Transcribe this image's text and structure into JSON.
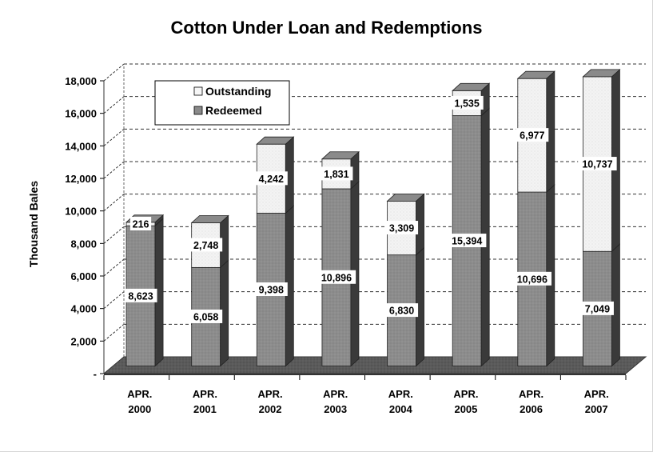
{
  "chart_data": {
    "type": "bar",
    "stacked": true,
    "three_d": true,
    "title": "Cotton Under Loan and Redemptions",
    "xlabel": "",
    "ylabel": "Thousand Bales",
    "categories": [
      [
        "APR.",
        "2000"
      ],
      [
        "APR.",
        "2001"
      ],
      [
        "APR.",
        "2002"
      ],
      [
        "APR.",
        "2003"
      ],
      [
        "APR.",
        "2004"
      ],
      [
        "APR.",
        "2005"
      ],
      [
        "APR.",
        "2006"
      ],
      [
        "APR.",
        "2007"
      ]
    ],
    "series": [
      {
        "name": "Redeemed",
        "values": [
          8623,
          6058,
          9398,
          10896,
          6830,
          15394,
          10696,
          7049
        ],
        "labels": [
          "8,623",
          "6,058",
          "9,398",
          "10,896",
          "6,830",
          "15,394",
          "10,696",
          "7,049"
        ],
        "color": "#8a8a8a"
      },
      {
        "name": "Outstanding",
        "values": [
          216,
          2748,
          4242,
          1831,
          3309,
          1535,
          6977,
          10737
        ],
        "labels": [
          "216",
          "2,748",
          "4,242",
          "1,831",
          "3,309",
          "1,535",
          "6,977",
          "10,737"
        ],
        "color": "#f0f0f0"
      }
    ],
    "ylim": [
      0,
      18000
    ],
    "yticks": [
      0,
      2000,
      4000,
      6000,
      8000,
      10000,
      12000,
      14000,
      16000,
      18000
    ],
    "ytick_labels": [
      "-",
      "2,000",
      "4,000",
      "6,000",
      "8,000",
      "10,000",
      "12,000",
      "14,000",
      "16,000",
      "18,000"
    ],
    "grid": true,
    "legend_position": "top-left",
    "legend_order": [
      "Outstanding",
      "Redeemed"
    ]
  }
}
